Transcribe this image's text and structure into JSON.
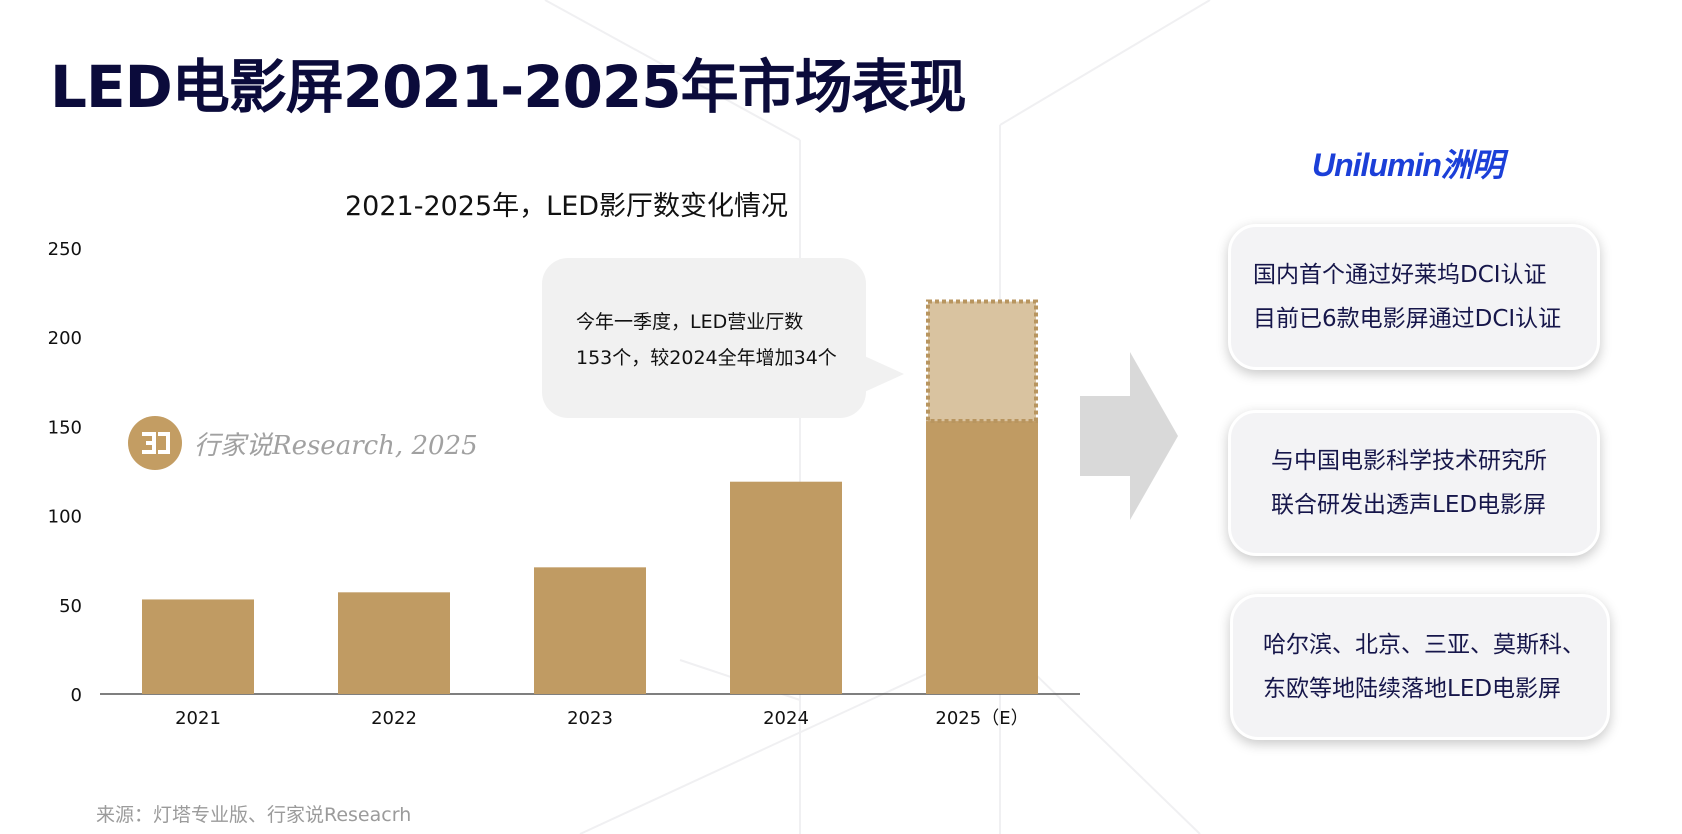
{
  "title": "LED电影屏2021-2025年市场表现",
  "chart_data": {
    "type": "bar",
    "title": "2021-2025年，LED影厅数变化情况",
    "categories": [
      "2021",
      "2022",
      "2023",
      "2024",
      "2025（E）"
    ],
    "values": [
      53,
      57,
      71,
      119,
      153
    ],
    "projected": {
      "category": "2025（E）",
      "from": 153,
      "to": 220
    },
    "ylim": [
      0,
      250
    ],
    "yticks": [
      0,
      50,
      100,
      150,
      200,
      250
    ],
    "xlabel": "",
    "ylabel": "",
    "grid": false,
    "colors": {
      "bar": "#c09b63",
      "projected_fill": "#d9c3a0",
      "projected_border": "#b8955f"
    }
  },
  "callout": {
    "line1": "今年一季度，LED营业厅数",
    "line2": "153个，较2024全年增加34个"
  },
  "watermark": {
    "text": "行家说Research, 2025",
    "logo_icon": "hangjiashuo-logo-icon"
  },
  "brand": {
    "text": "Unilumin洲明",
    "color": "#1b3fd8"
  },
  "highlights": [
    {
      "line1": "国内首个通过好莱坞DCI认证",
      "line2": "目前已6款电影屏通过DCI认证"
    },
    {
      "line1": "与中国电影科学技术研究所",
      "line2": "联合研发出透声LED电影屏"
    },
    {
      "line1": "哈尔滨、北京、三亚、莫斯科、",
      "line2": "东欧等地陆续落地LED电影屏"
    }
  ],
  "source": "来源：灯塔专业版、行家说Reseacrh"
}
